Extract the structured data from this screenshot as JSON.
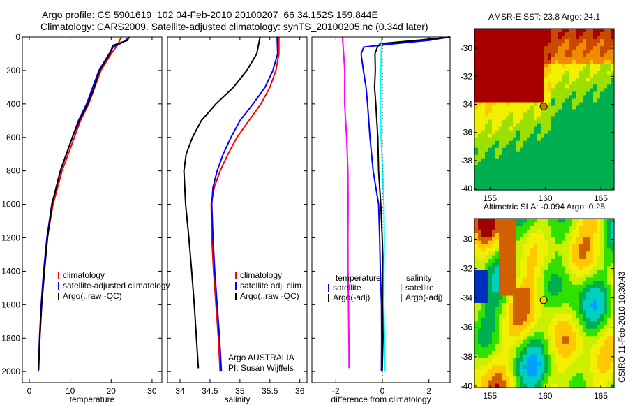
{
  "title": {
    "line1": "Argo profile: CS 5901619_102 04-Feb-2010 20100207_66 34.152S 159.844E",
    "line2": "Climatology: CARS2009. Satellite-adjusted climatology: synTS_20100205.nc (0.34d later)"
  },
  "credit": "CSIRO 11-Feb-2010 10:30:43",
  "attribution": {
    "line1": "Argo AUSTRALIA",
    "line2": "PI: Susan Wijffels"
  },
  "chart_data": [
    {
      "id": "temperature",
      "type": "line",
      "xlabel": "temperature",
      "ylabel": "",
      "xlim": [
        -1.7,
        32.4
      ],
      "ylim": [
        2066,
        0
      ],
      "xticks": [
        "0",
        "10",
        "20",
        "30"
      ],
      "yticks": [
        "0",
        "200",
        "400",
        "600",
        "800",
        "1000",
        "1200",
        "1400",
        "1600",
        "1800",
        "2000"
      ],
      "legend": [
        "climatology",
        "satellite-adjusted climatology",
        "Argo(..raw -QC)"
      ],
      "series": [
        {
          "name": "climatology",
          "color": "#ff0000",
          "depth": [
            0,
            50,
            100,
            200,
            300,
            400,
            500,
            600,
            800,
            1000,
            1200,
            1400,
            1600,
            1800,
            1950
          ],
          "values": [
            22.5,
            21.5,
            20,
            17.5,
            16,
            14.5,
            12.5,
            11,
            8,
            5.8,
            4.4,
            3.6,
            3.0,
            2.6,
            2.3
          ]
        },
        {
          "name": "satellite-adjusted climatology",
          "color": "#0000ff",
          "depth": [
            0,
            30,
            60,
            100,
            200,
            300,
            400,
            500,
            600,
            800,
            1000,
            1200,
            1400,
            1600,
            1800,
            2000
          ],
          "values": [
            24.5,
            23,
            20.5,
            19.5,
            17,
            15.5,
            14,
            12,
            10.5,
            7.6,
            5.5,
            4.3,
            3.5,
            2.9,
            2.5,
            2.2
          ]
        },
        {
          "name": "Argo(..raw -QC)",
          "color": "#000000",
          "depth": [
            0,
            20,
            50,
            100,
            200,
            300,
            400,
            500,
            600,
            800,
            1000,
            1200,
            1400,
            1600,
            1800,
            1990
          ],
          "values": [
            24.3,
            24,
            20.5,
            19.8,
            17.2,
            15.8,
            14.2,
            12.2,
            10.6,
            7.7,
            5.6,
            4.4,
            3.6,
            3.0,
            2.6,
            2.4
          ]
        }
      ]
    },
    {
      "id": "salinity",
      "type": "line",
      "xlabel": "salinity",
      "xlim": [
        33.79,
        36.12
      ],
      "ylim": [
        2066,
        0
      ],
      "xticks": [
        "34",
        "34.5",
        "35",
        "35.5",
        "36"
      ],
      "legend": [
        "climatology",
        "satellite adj. clim.",
        "Argo(..raw -QC)"
      ],
      "series": [
        {
          "name": "climatology",
          "color": "#ff0000",
          "depth": [
            0,
            100,
            200,
            300,
            400,
            500,
            600,
            700,
            800,
            900,
            1000,
            1200,
            1400,
            1600,
            1800,
            2000
          ],
          "values": [
            35.65,
            35.65,
            35.6,
            35.5,
            35.35,
            35.15,
            34.95,
            34.8,
            34.67,
            34.57,
            34.52,
            34.53,
            34.56,
            34.6,
            34.64,
            34.67
          ]
        },
        {
          "name": "satellite adj. clim.",
          "color": "#0000ff",
          "depth": [
            0,
            100,
            200,
            300,
            400,
            500,
            600,
            700,
            800,
            900,
            1000,
            1200,
            1400,
            1600,
            1800,
            2000
          ],
          "values": [
            35.62,
            35.63,
            35.55,
            35.42,
            35.22,
            35.0,
            34.85,
            34.72,
            34.62,
            34.55,
            34.53,
            34.55,
            34.58,
            34.62,
            34.66,
            34.69
          ]
        },
        {
          "name": "Argo(..raw -QC)",
          "color": "#000000",
          "depth": [
            0,
            100,
            200,
            300,
            400,
            500,
            600,
            700,
            800,
            1000,
            1200,
            1400,
            1600,
            1800,
            1980
          ],
          "values": [
            35.33,
            35.28,
            35.12,
            34.9,
            34.6,
            34.35,
            34.2,
            34.1,
            34.07,
            34.1,
            34.15,
            34.19,
            34.23,
            34.27,
            34.31
          ]
        }
      ]
    },
    {
      "id": "difference",
      "type": "line",
      "xlabel": "difference from climatology",
      "xlim": [
        -3.03,
        2.91
      ],
      "ylim": [
        2066,
        0
      ],
      "xticks": [
        "-2",
        "0",
        "2"
      ],
      "legend": {
        "temperature": "temperature",
        "salinity": "salinity",
        "entries": [
          "satellite",
          "Argo(-adj)",
          "satellite",
          "Argo(-adj)"
        ]
      },
      "series": [
        {
          "name": "temperature satellite",
          "color": "#0000ff",
          "depth": [
            0,
            20,
            40,
            60,
            100,
            200,
            300,
            400,
            600,
            800,
            1000,
            1200,
            1400,
            1600,
            1800,
            2000
          ],
          "values": [
            2.9,
            2.0,
            0.5,
            -0.8,
            -0.9,
            -0.8,
            -0.7,
            -0.65,
            -0.55,
            -0.4,
            -0.15,
            -0.1,
            -0.08,
            -0.05,
            -0.05,
            -0.05
          ]
        },
        {
          "name": "temperature Argo(-adj)",
          "color": "#000000",
          "depth": [
            0,
            20,
            40,
            60,
            100,
            200,
            300,
            400,
            600,
            800,
            1000,
            1200,
            1400,
            1600,
            1800,
            2000
          ],
          "values": [
            2.9,
            1.5,
            -0.1,
            -0.2,
            -0.3,
            -0.3,
            -0.35,
            -0.3,
            -0.2,
            -0.15,
            -0.05,
            0.0,
            0.02,
            0.0,
            0.02,
            0.0
          ]
        },
        {
          "name": "salinity satellite",
          "color": "#00ffff",
          "depth": [
            0,
            100,
            200,
            400,
            600,
            800,
            1000,
            1200,
            1400,
            1600,
            1800,
            2000
          ],
          "values": [
            -0.05,
            -0.05,
            -0.05,
            -0.08,
            -0.05,
            0.0,
            0.05,
            0.08,
            0.08,
            0.08,
            0.1,
            0.1
          ]
        },
        {
          "name": "salinity Argo(-adj)",
          "color": "#ff00ff",
          "depth": [
            0,
            100,
            200,
            400,
            600,
            800,
            1000,
            1200,
            1400,
            1600,
            1800,
            1980
          ],
          "values": [
            -1.72,
            -1.65,
            -1.6,
            -1.62,
            -1.55,
            -1.5,
            -1.48,
            -1.47,
            -1.46,
            -1.45,
            -1.45,
            -1.45
          ]
        }
      ]
    },
    {
      "id": "sst-map",
      "type": "heatmap",
      "title": "AMSR-E SST: 23.8 Argo: 24.1",
      "xlim": [
        153.6,
        166.2
      ],
      "ylim": [
        -40.1,
        -28.6
      ],
      "xticks": [
        "155",
        "160",
        "165"
      ],
      "yticks": [
        "-30",
        "-32",
        "-34",
        "-36",
        "-38",
        "-40"
      ],
      "marker": {
        "lon": 159.844,
        "lat": -34.152
      }
    },
    {
      "id": "sla-map",
      "type": "heatmap",
      "title": "Altimetric SLA: -0.094 Argo: 0.25",
      "xlim": [
        153.6,
        166.2
      ],
      "ylim": [
        -40.1,
        -28.6
      ],
      "xticks": [
        "155",
        "160",
        "165"
      ],
      "yticks": [
        "-30",
        "-32",
        "-34",
        "-36",
        "-38",
        "-40"
      ],
      "marker": {
        "lon": 159.844,
        "lat": -34.152
      }
    }
  ]
}
